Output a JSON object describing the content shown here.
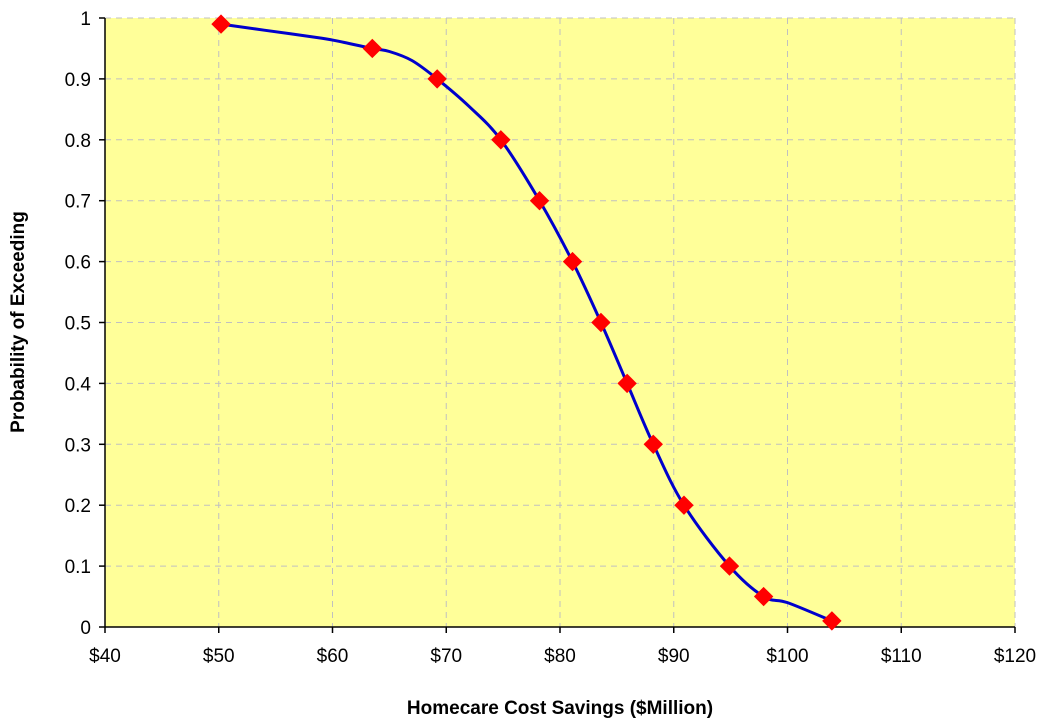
{
  "chart_data": {
    "type": "line",
    "title": "",
    "xlabel": "Homecare Cost Savings ($Million)",
    "ylabel": "Probability of Exceeding",
    "xlim": [
      40,
      120
    ],
    "ylim": [
      0,
      1
    ],
    "x_ticks": [
      40,
      50,
      60,
      70,
      80,
      90,
      100,
      110,
      120
    ],
    "x_tick_labels": [
      "$40",
      "$50",
      "$60",
      "$70",
      "$80",
      "$90",
      "$100",
      "$110",
      "$120"
    ],
    "y_ticks": [
      0,
      0.1,
      0.2,
      0.3,
      0.4,
      0.5,
      0.6,
      0.7,
      0.8,
      0.9,
      1
    ],
    "y_tick_labels": [
      "0",
      "0.1",
      "0.2",
      "0.3",
      "0.4",
      "0.5",
      "0.6",
      "0.7",
      "0.8",
      "0.9",
      "1"
    ],
    "grid": true,
    "legend": "none",
    "colors": {
      "plot_background": "#ffff99",
      "line": "#0000cc",
      "marker": "#ff0000",
      "grid": "#c0c0c0",
      "axis": "#000000"
    },
    "marker_shape": "diamond",
    "curve": {
      "x": [
        50.2,
        54,
        59,
        61,
        63.5,
        65,
        67,
        69.2,
        72,
        74.8,
        78.2,
        81.1,
        83.6,
        85.9,
        88.2,
        90.9,
        94.9,
        97.9,
        100,
        103.9
      ],
      "y": [
        0.99,
        0.98,
        0.967,
        0.96,
        0.95,
        0.945,
        0.93,
        0.9,
        0.855,
        0.8,
        0.7,
        0.6,
        0.5,
        0.4,
        0.3,
        0.2,
        0.1,
        0.05,
        0.04,
        0.01
      ]
    },
    "series": [
      {
        "x": [
          50.2,
          63.5,
          69.2,
          74.8,
          78.2,
          81.1,
          83.6,
          85.9,
          88.2,
          90.9,
          94.9,
          97.9,
          103.9
        ],
        "y": [
          0.99,
          0.95,
          0.9,
          0.8,
          0.7,
          0.6,
          0.5,
          0.4,
          0.3,
          0.2,
          0.1,
          0.05,
          0.01
        ]
      }
    ]
  }
}
